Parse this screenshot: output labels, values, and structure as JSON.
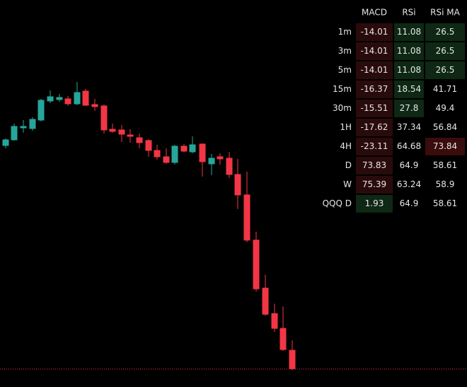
{
  "table": {
    "columns": [
      "MACD",
      "RSi",
      "RSi MA"
    ],
    "rows": [
      {
        "label": "1m",
        "cells": [
          -14.01,
          11.08,
          26.5
        ],
        "colors": [
          "#2a0b0b",
          "#0e2814",
          "#0e2814"
        ]
      },
      {
        "label": "3m",
        "cells": [
          -14.01,
          11.08,
          26.5
        ],
        "colors": [
          "#2a0b0b",
          "#0e2814",
          "#0e2814"
        ]
      },
      {
        "label": "5m",
        "cells": [
          -14.01,
          11.08,
          26.5
        ],
        "colors": [
          "#2a0b0b",
          "#0e2814",
          "#0e2814"
        ]
      },
      {
        "label": "15m",
        "cells": [
          -16.37,
          18.54,
          41.71
        ],
        "colors": [
          "#2a0b0b",
          "#0e2814",
          "#000000"
        ]
      },
      {
        "label": "30m",
        "cells": [
          -15.51,
          27.8,
          49.4
        ],
        "colors": [
          "#2a0b0b",
          "#0e2814",
          "#000000"
        ]
      },
      {
        "label": "1H",
        "cells": [
          -17.62,
          37.34,
          56.84
        ],
        "colors": [
          "#2a0b0b",
          "#000000",
          "#000000"
        ]
      },
      {
        "label": "4H",
        "cells": [
          -23.11,
          64.68,
          73.84
        ],
        "colors": [
          "#2a0b0b",
          "#000000",
          "#3a0c0c"
        ]
      },
      {
        "label": "D",
        "cells": [
          73.83,
          64.9,
          58.61
        ],
        "colors": [
          "#2a0b0b",
          "#000000",
          "#000000"
        ]
      },
      {
        "label": "W",
        "cells": [
          75.39,
          63.24,
          58.9
        ],
        "colors": [
          "#2a0b0b",
          "#000000",
          "#000000"
        ]
      },
      {
        "label": "QQQ D",
        "cells": [
          1.93,
          64.9,
          58.61
        ],
        "colors": [
          "#0e2814",
          "#000000",
          "#000000"
        ]
      }
    ]
  }
}
